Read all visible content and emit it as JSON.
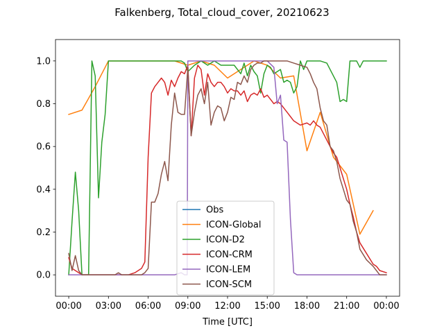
{
  "chart_data": {
    "type": "line",
    "title": "Falkenberg, Total_cloud_cover, 20210623",
    "xlabel": "Time [UTC]",
    "ylabel": "",
    "xlim": [
      -1,
      25
    ],
    "ylim": [
      -0.1,
      1.1
    ],
    "xticks": [
      0,
      3,
      6,
      9,
      12,
      15,
      18,
      21,
      24
    ],
    "xtick_labels": [
      "00:00",
      "03:00",
      "06:00",
      "09:00",
      "12:00",
      "15:00",
      "18:00",
      "21:00",
      "00:00"
    ],
    "yticks": [
      0.0,
      0.2,
      0.4,
      0.6,
      0.8,
      1.0
    ],
    "ytick_labels": [
      "0.0",
      "0.2",
      "0.4",
      "0.6",
      "0.8",
      "1.0"
    ],
    "grid": false,
    "legend_position": "lower-center",
    "series": [
      {
        "name": "Obs",
        "color": "#1f77b4",
        "x": [],
        "y": []
      },
      {
        "name": "ICON-Global",
        "color": "#ff7f0e",
        "x": [
          0,
          1,
          2,
          3,
          4,
          5,
          6,
          7,
          8,
          9,
          10,
          11,
          12,
          13,
          14,
          15,
          16,
          17,
          18,
          19,
          20,
          21,
          22,
          23
        ],
        "y": [
          0.75,
          0.77,
          0.88,
          1.0,
          1.0,
          1.0,
          1.0,
          1.0,
          1.0,
          0.98,
          1.0,
          0.98,
          0.92,
          0.96,
          1.0,
          0.98,
          0.92,
          0.93,
          0.58,
          0.76,
          0.55,
          0.47,
          0.19,
          0.3
        ]
      },
      {
        "name": "ICON-D2",
        "color": "#2ca02c",
        "x": [
          0,
          0.25,
          0.5,
          0.75,
          1.0,
          1.25,
          1.5,
          1.75,
          2.0,
          2.25,
          2.5,
          2.75,
          3.0,
          3.5,
          4.0,
          5.0,
          6.0,
          7.0,
          8.0,
          8.5,
          8.75,
          9.0,
          9.5,
          10.0,
          10.5,
          11.0,
          11.25,
          11.5,
          12.0,
          12.5,
          13.0,
          13.25,
          13.5,
          13.75,
          14.0,
          14.25,
          14.5,
          14.75,
          15.0,
          15.25,
          15.5,
          15.75,
          16.0,
          16.25,
          16.5,
          16.75,
          17.0,
          17.25,
          17.5,
          17.75,
          18.0,
          18.25,
          18.5,
          18.75,
          19.0,
          19.5,
          20.0,
          20.25,
          20.5,
          20.75,
          21.0,
          21.25,
          21.5,
          21.75,
          22.0,
          22.25,
          22.5,
          22.75,
          23.0,
          23.5,
          24.0
        ],
        "y": [
          0.0,
          0.25,
          0.48,
          0.3,
          0.0,
          0.0,
          0.0,
          1.0,
          0.93,
          0.36,
          0.62,
          0.75,
          1.0,
          1.0,
          1.0,
          1.0,
          1.0,
          1.0,
          1.0,
          1.0,
          0.99,
          0.95,
          0.98,
          1.0,
          0.98,
          1.0,
          0.99,
          0.98,
          0.98,
          0.98,
          0.94,
          0.99,
          0.93,
          0.98,
          0.95,
          0.93,
          0.85,
          0.94,
          0.98,
          0.97,
          0.94,
          0.95,
          0.96,
          0.9,
          0.91,
          0.9,
          0.85,
          0.88,
          1.0,
          0.96,
          1.0,
          1.0,
          1.0,
          1.0,
          1.0,
          0.99,
          0.93,
          0.9,
          0.81,
          0.82,
          0.81,
          1.0,
          1.0,
          1.0,
          0.97,
          1.0,
          1.0,
          1.0,
          1.0,
          1.0,
          1.0
        ]
      },
      {
        "name": "ICON-CRM",
        "color": "#d62728",
        "x": [
          0,
          0.25,
          0.5,
          1.0,
          2.0,
          3.0,
          4.0,
          4.5,
          5.0,
          5.5,
          5.75,
          6.0,
          6.25,
          6.5,
          6.75,
          7.0,
          7.25,
          7.5,
          7.75,
          8.0,
          8.25,
          8.5,
          8.75,
          9.0,
          9.25,
          9.5,
          9.75,
          10.0,
          10.25,
          10.5,
          10.75,
          11.0,
          11.25,
          11.5,
          11.75,
          12.0,
          12.25,
          12.5,
          12.75,
          13.0,
          13.25,
          13.5,
          13.75,
          14.0,
          14.25,
          14.5,
          14.75,
          15.0,
          15.25,
          15.5,
          15.75,
          16.0,
          16.25,
          16.5,
          16.75,
          17.0,
          17.5,
          18.0,
          18.25,
          18.5,
          18.75,
          19.0,
          19.25,
          19.5,
          19.75,
          20.0,
          20.25,
          20.5,
          20.75,
          21.0,
          21.25,
          21.5,
          21.75,
          22.0,
          22.5,
          23.0,
          23.25,
          23.5,
          24.0
        ],
        "y": [
          0.08,
          0.03,
          0.02,
          0.0,
          0.0,
          0.0,
          0.0,
          0.0,
          0.01,
          0.03,
          0.06,
          0.55,
          0.85,
          0.88,
          0.9,
          0.92,
          0.9,
          0.84,
          0.91,
          0.88,
          0.92,
          0.95,
          0.94,
          0.98,
          0.65,
          0.92,
          0.98,
          0.96,
          0.84,
          0.94,
          0.9,
          0.88,
          0.9,
          0.9,
          0.88,
          0.85,
          0.87,
          0.86,
          0.86,
          0.84,
          0.86,
          0.81,
          0.84,
          0.85,
          0.84,
          0.87,
          0.83,
          0.84,
          0.82,
          0.8,
          0.81,
          0.8,
          0.78,
          0.76,
          0.74,
          0.72,
          0.7,
          0.71,
          0.7,
          0.72,
          0.7,
          0.69,
          0.66,
          0.63,
          0.6,
          0.57,
          0.55,
          0.5,
          0.45,
          0.4,
          0.33,
          0.27,
          0.2,
          0.15,
          0.1,
          0.05,
          0.04,
          0.02,
          0.01
        ]
      },
      {
        "name": "ICON-LEM",
        "color": "#9467bd",
        "x": [
          0,
          1,
          2,
          3,
          4,
          5,
          6,
          7,
          8,
          8.5,
          8.75,
          8.85,
          8.95,
          9.0,
          9.25,
          9.5,
          10.0,
          11.0,
          12.0,
          13.0,
          14.0,
          15.0,
          15.5,
          15.75,
          16.0,
          16.25,
          16.5,
          16.75,
          17.0,
          17.25,
          17.5,
          18.0,
          19.0,
          20.0,
          21.0,
          22.0,
          23.0,
          24.0
        ],
        "y": [
          0.0,
          0.0,
          0.0,
          0.0,
          0.0,
          0.0,
          0.0,
          0.0,
          0.0,
          0.01,
          0.0,
          0.0,
          0.0,
          1.0,
          1.0,
          1.0,
          1.0,
          1.0,
          1.0,
          1.0,
          1.0,
          1.0,
          0.97,
          0.8,
          0.84,
          0.63,
          0.62,
          0.26,
          0.01,
          0.0,
          0.0,
          0.0,
          0.0,
          0.0,
          0.0,
          0.0,
          0.0,
          0.0
        ]
      },
      {
        "name": "ICON-SCM",
        "color": "#8c564b",
        "x": [
          0,
          0.25,
          0.5,
          0.75,
          1.0,
          1.5,
          2.0,
          3.0,
          3.5,
          3.75,
          4.0,
          4.5,
          5.0,
          5.5,
          5.75,
          6.0,
          6.25,
          6.5,
          6.75,
          7.0,
          7.25,
          7.5,
          7.75,
          8.0,
          8.25,
          8.5,
          8.75,
          9.0,
          9.25,
          9.5,
          9.75,
          10.0,
          10.25,
          10.5,
          10.75,
          11.0,
          11.25,
          11.5,
          11.75,
          12.0,
          12.25,
          12.5,
          12.75,
          13.0,
          13.25,
          13.5,
          13.75,
          14.0,
          14.25,
          14.5,
          14.75,
          15.0,
          15.5,
          16.0,
          16.5,
          17.0,
          17.5,
          18.0,
          18.25,
          18.5,
          18.75,
          19.0,
          19.25,
          19.5,
          19.75,
          20.0,
          20.25,
          20.5,
          20.75,
          21.0,
          21.25,
          21.5,
          21.75,
          22.0,
          22.5,
          23.0,
          23.25,
          23.5,
          24.0
        ],
        "y": [
          0.1,
          0.02,
          0.09,
          0.02,
          0.0,
          0.0,
          0.0,
          0.0,
          0.0,
          0.01,
          0.0,
          0.0,
          0.0,
          0.0,
          0.01,
          0.03,
          0.34,
          0.34,
          0.38,
          0.47,
          0.53,
          0.44,
          0.7,
          0.85,
          0.76,
          0.75,
          0.75,
          0.97,
          0.65,
          0.76,
          0.84,
          0.87,
          0.8,
          0.9,
          0.7,
          0.76,
          0.79,
          0.78,
          0.72,
          0.76,
          0.83,
          0.82,
          0.9,
          0.89,
          0.93,
          0.9,
          0.96,
          0.98,
          0.99,
          0.99,
          1.0,
          1.0,
          1.0,
          1.0,
          1.0,
          0.99,
          0.98,
          0.97,
          0.94,
          0.9,
          0.87,
          0.78,
          0.72,
          0.7,
          0.6,
          0.58,
          0.53,
          0.45,
          0.4,
          0.35,
          0.33,
          0.25,
          0.2,
          0.12,
          0.07,
          0.04,
          0.02,
          0.0,
          0.0
        ]
      }
    ]
  }
}
